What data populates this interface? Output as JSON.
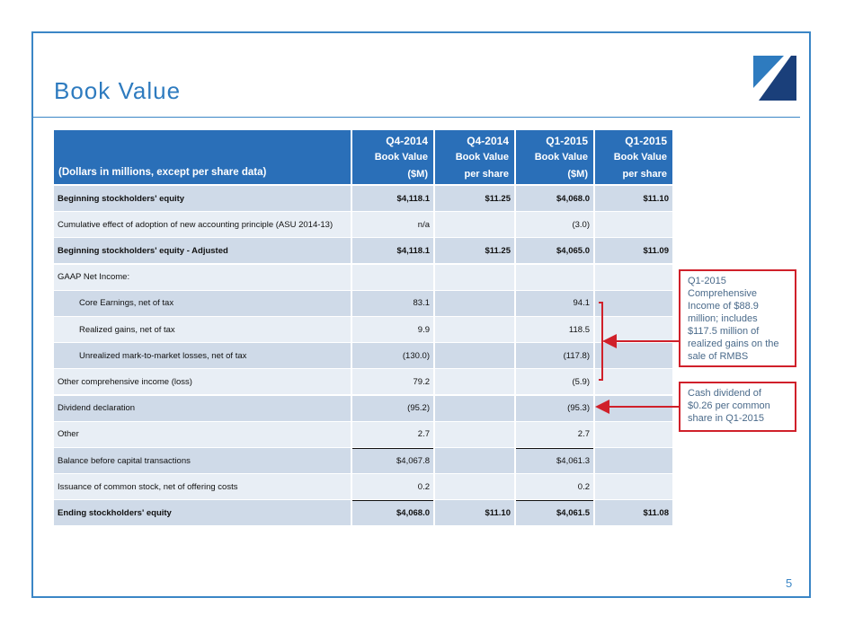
{
  "header": {
    "title": "Book Value"
  },
  "table": {
    "columns": [
      {
        "label": "(Dollars in millions, except per share data)"
      },
      {
        "period": "Q4-2014",
        "measure": "Book Value",
        "unit": "($M)"
      },
      {
        "period": "Q4-2014",
        "measure": "Book Value",
        "unit": "per share"
      },
      {
        "period": "Q1-2015",
        "measure": "Book Value",
        "unit": "($M)"
      },
      {
        "period": "Q1-2015",
        "measure": "Book Value",
        "unit": "per share"
      }
    ],
    "rows": [
      [
        "Beginning stockholders' equity",
        "$4,118.1",
        "$11.25",
        "$4,068.0",
        "$11.10"
      ],
      [
        "Cumulative effect of adoption of new accounting principle (ASU 2014-13)",
        "n/a",
        null,
        "(3.0)",
        null
      ],
      [
        "Beginning stockholders' equity - Adjusted",
        "$4,118.1",
        "$11.25",
        "$4,065.0",
        "$11.09"
      ],
      [
        "GAAP Net Income:",
        null,
        null,
        null,
        null
      ],
      [
        "Core Earnings, net of tax",
        "83.1",
        null,
        "94.1",
        null
      ],
      [
        "Realized gains, net of tax",
        "9.9",
        null,
        "118.5",
        null
      ],
      [
        "Unrealized mark-to-market losses, net of tax",
        "(130.0)",
        null,
        "(117.8)",
        null
      ],
      [
        "Other comprehensive income (loss)",
        "79.2",
        null,
        "(5.9)",
        null
      ],
      [
        "Dividend declaration",
        "(95.2)",
        null,
        "(95.3)",
        null
      ],
      [
        "Other",
        "2.7",
        null,
        "2.7",
        null
      ],
      [
        "Balance before capital transactions",
        "$4,067.8",
        null,
        "$4,061.3",
        null
      ],
      [
        "Issuance of common stock, net of offering costs",
        "0.2",
        null,
        "0.2",
        null
      ],
      [
        "Ending stockholders' equity",
        "$4,068.0",
        "$11.10",
        "$4,061.5",
        "$11.08"
      ]
    ]
  },
  "annotations": [
    "Q1-2015 Comprehensive Income of $88.9 million; includes $117.5 million of realized gains on the sale of RMBS",
    "Cash dividend of $0.26 per common share in Q1-2015"
  ],
  "footer": {
    "page_number": "5"
  }
}
